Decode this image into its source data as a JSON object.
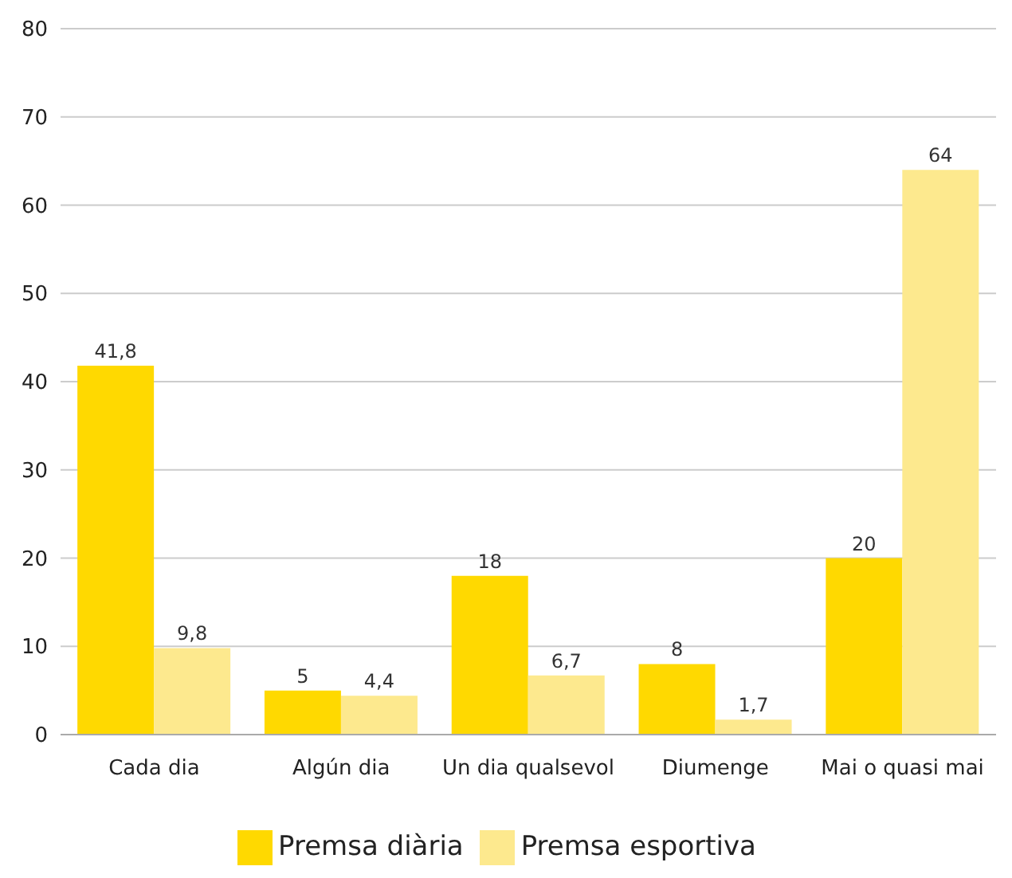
{
  "chart_data": {
    "type": "bar",
    "categories": [
      "Cada dia",
      "Algún dia",
      "Un dia qualsevol",
      "Diumenge",
      "Mai o quasi mai"
    ],
    "series": [
      {
        "name": "Premsa diària",
        "color": "#ffd900",
        "values": [
          41.8,
          5,
          18,
          8,
          20
        ],
        "value_labels": [
          "41,8",
          "5",
          "18",
          "8",
          "20"
        ]
      },
      {
        "name": "Premsa esportiva",
        "color": "#fde98e",
        "values": [
          9.8,
          4.4,
          6.7,
          1.7,
          64
        ],
        "value_labels": [
          "9,8",
          "4,4",
          "6,7",
          "1,7",
          "64"
        ]
      }
    ],
    "ylim": [
      0,
      80
    ],
    "yticks": [
      0,
      10,
      20,
      30,
      40,
      50,
      60,
      70,
      80
    ],
    "grid": "y",
    "legend": "bottom"
  }
}
